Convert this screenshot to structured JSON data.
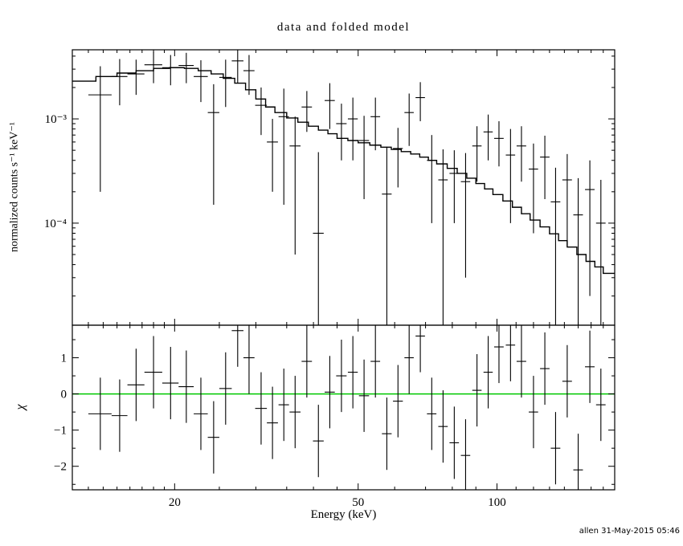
{
  "chart_data": {
    "type": "line",
    "title": "data and folded model",
    "xlabel": "Energy (keV)",
    "xscale": "log",
    "xlim": [
      12,
      180
    ],
    "xticks": [
      {
        "v": 20,
        "label": "20"
      },
      {
        "v": 50,
        "label": "50"
      },
      {
        "v": 100,
        "label": "100"
      }
    ],
    "xminor": [
      13,
      14,
      15,
      16,
      17,
      18,
      19,
      25,
      30,
      35,
      40,
      45,
      60,
      70,
      80,
      90,
      110,
      120,
      130,
      140,
      150,
      160,
      170
    ],
    "credit": "allen 31-May-2015 05:46",
    "accent_green": "#00c800",
    "panels": [
      {
        "ylabel": "normalized counts s⁻¹ keV⁻¹",
        "yscale": "log",
        "ylim": [
          1.05e-05,
          0.0046
        ],
        "yticks": [
          {
            "v": 0.001,
            "label": "10⁻³"
          },
          {
            "v": 0.0001,
            "label": "10⁻⁴"
          }
        ],
        "yminor": [
          2e-05,
          3e-05,
          4e-05,
          5e-05,
          6e-05,
          7e-05,
          8e-05,
          9e-05,
          0.0002,
          0.0003,
          0.0004,
          0.0005,
          0.0006,
          0.0007,
          0.0008,
          0.0009,
          0.002,
          0.003,
          0.004
        ],
        "model": {
          "edges": [
            12,
            13.5,
            15,
            16.5,
            18,
            19.5,
            21,
            22.5,
            24,
            25.5,
            27,
            28.5,
            30,
            31.5,
            33,
            35,
            37,
            39,
            41,
            43,
            45,
            47.5,
            50,
            53,
            56,
            59,
            62,
            65,
            68,
            71,
            74,
            78,
            82,
            86,
            90,
            94,
            98,
            103,
            108,
            113,
            118,
            124,
            130,
            136,
            142,
            149,
            156,
            163,
            170,
            180
          ],
          "values": [
            0.0023,
            0.00255,
            0.00275,
            0.0029,
            0.00305,
            0.0031,
            0.00305,
            0.0029,
            0.0027,
            0.00245,
            0.0022,
            0.0019,
            0.00155,
            0.0013,
            0.00115,
            0.00102,
            0.00093,
            0.00085,
            0.00078,
            0.00072,
            0.00065,
            0.00062,
            0.00059,
            0.00056,
            0.000535,
            0.00051,
            0.000485,
            0.00046,
            0.00043,
            0.0004,
            0.00037,
            0.000335,
            0.0003,
            0.00027,
            0.00024,
            0.000213,
            0.000188,
            0.000163,
            0.000142,
            0.000123,
            0.000107,
            9.2e-05,
            7.9e-05,
            6.8e-05,
            5.9e-05,
            5e-05,
            4.3e-05,
            3.8e-05,
            3.3e-05
          ]
        },
        "points": [
          [
            13.8,
            0.8,
            0.0017,
            0.0015
          ],
          [
            15.2,
            0.6,
            0.00255,
            0.0012
          ],
          [
            16.5,
            0.7,
            0.0027,
            0.001
          ],
          [
            18.0,
            0.8,
            0.0033,
            0.0011
          ],
          [
            19.6,
            0.8,
            0.0031,
            0.001
          ],
          [
            21.2,
            0.8,
            0.00325,
            0.00105
          ],
          [
            22.8,
            0.8,
            0.00255,
            0.0011
          ],
          [
            24.3,
            0.7,
            0.00115,
            0.001
          ],
          [
            25.8,
            0.8,
            0.0025,
            0.0012
          ],
          [
            27.4,
            0.8,
            0.0036,
            0.0014
          ],
          [
            29.0,
            0.8,
            0.0029,
            0.0012
          ],
          [
            30.8,
            0.9,
            0.00135,
            0.00065
          ],
          [
            32.6,
            0.9,
            0.0006,
            0.0004
          ],
          [
            34.5,
            0.9,
            0.00105,
            0.0009
          ],
          [
            36.5,
            1.0,
            0.00055,
            0.0005
          ],
          [
            38.7,
            1.0,
            0.0013,
            0.00055
          ],
          [
            41.0,
            1.1,
            8e-05,
            0.0004
          ],
          [
            43.4,
            1.1,
            0.0015,
            0.0007
          ],
          [
            46.0,
            1.2,
            0.0009,
            0.0005
          ],
          [
            48.7,
            1.2,
            0.001,
            0.0006
          ],
          [
            51.5,
            1.3,
            0.00062,
            0.00045
          ],
          [
            54.5,
            1.3,
            0.00105,
            0.00055
          ],
          [
            57.7,
            1.4,
            0.00019,
            0.00035
          ],
          [
            61.0,
            1.5,
            0.00052,
            0.0003
          ],
          [
            64.5,
            1.5,
            0.00115,
            0.0006
          ],
          [
            68.2,
            1.6,
            0.0016,
            0.00065
          ],
          [
            72.2,
            1.7,
            0.0004,
            0.0003
          ],
          [
            76.4,
            1.8,
            0.00026,
            0.00025
          ],
          [
            80.8,
            1.9,
            0.0003,
            0.0002
          ],
          [
            85.5,
            2.0,
            0.00025,
            0.00022
          ],
          [
            90.5,
            2.1,
            0.00055,
            0.0003
          ],
          [
            95.7,
            2.2,
            0.00075,
            0.00035
          ],
          [
            101,
            2.4,
            0.00065,
            0.0003
          ],
          [
            107,
            2.5,
            0.00045,
            0.00035
          ],
          [
            113,
            2.7,
            0.00055,
            0.0003
          ],
          [
            120,
            2.8,
            0.00033,
            0.00025
          ],
          [
            127,
            3.0,
            0.00043,
            0.00026
          ],
          [
            134,
            3.2,
            0.00016,
            0.00018
          ],
          [
            142,
            3.4,
            0.00026,
            0.0002
          ],
          [
            150,
            3.6,
            0.00012,
            0.00015
          ],
          [
            159,
            3.8,
            0.00021,
            0.00019
          ],
          [
            168,
            4.0,
            0.0001,
            0.00016
          ]
        ]
      },
      {
        "ylabel": "χ",
        "yscale": "linear",
        "ylim": [
          -2.65,
          1.9
        ],
        "yticks": [
          {
            "v": 1,
            "label": "1"
          },
          {
            "v": 0,
            "label": "0"
          },
          {
            "v": -1,
            "label": "−1"
          },
          {
            "v": -2,
            "label": "−2"
          }
        ],
        "yminor": [
          -2.5,
          -1.5,
          -0.5,
          0.5,
          1.5
        ],
        "zero_line": 0,
        "zero_line_color": "#00c800",
        "point_error": 1,
        "points": [
          [
            13.8,
            0.8,
            -0.55
          ],
          [
            15.2,
            0.6,
            -0.6
          ],
          [
            16.5,
            0.7,
            0.25
          ],
          [
            18.0,
            0.8,
            0.6
          ],
          [
            19.6,
            0.8,
            0.3
          ],
          [
            21.2,
            0.8,
            0.2
          ],
          [
            22.8,
            0.8,
            -0.55
          ],
          [
            24.3,
            0.7,
            -1.2
          ],
          [
            25.8,
            0.8,
            0.15
          ],
          [
            27.4,
            0.8,
            1.75
          ],
          [
            29.0,
            0.8,
            1.0
          ],
          [
            30.8,
            0.9,
            -0.4
          ],
          [
            32.6,
            0.9,
            -0.8
          ],
          [
            34.5,
            0.9,
            -0.3
          ],
          [
            36.5,
            1.0,
            -0.5
          ],
          [
            38.7,
            1.0,
            0.9
          ],
          [
            41.0,
            1.1,
            -1.3
          ],
          [
            43.4,
            1.1,
            0.05
          ],
          [
            46.0,
            1.2,
            0.5
          ],
          [
            48.7,
            1.2,
            0.6
          ],
          [
            51.5,
            1.3,
            -0.05
          ],
          [
            54.5,
            1.3,
            0.9
          ],
          [
            57.7,
            1.4,
            -1.1
          ],
          [
            61.0,
            1.5,
            -0.2
          ],
          [
            64.5,
            1.5,
            1.0
          ],
          [
            68.2,
            1.6,
            1.6
          ],
          [
            72.2,
            1.7,
            -0.55
          ],
          [
            76.4,
            1.8,
            -0.9
          ],
          [
            80.8,
            1.9,
            -1.35
          ],
          [
            85.5,
            2.0,
            -1.7
          ],
          [
            90.5,
            2.1,
            0.1
          ],
          [
            95.7,
            2.2,
            0.6
          ],
          [
            101,
            2.4,
            1.3
          ],
          [
            107,
            2.5,
            1.35
          ],
          [
            113,
            2.7,
            0.9
          ],
          [
            120,
            2.8,
            -0.5
          ],
          [
            127,
            3.0,
            0.7
          ],
          [
            134,
            3.2,
            -1.5
          ],
          [
            142,
            3.4,
            0.35
          ],
          [
            150,
            3.6,
            -2.1
          ],
          [
            159,
            3.8,
            0.75
          ],
          [
            168,
            4.0,
            -0.3
          ]
        ]
      }
    ]
  }
}
